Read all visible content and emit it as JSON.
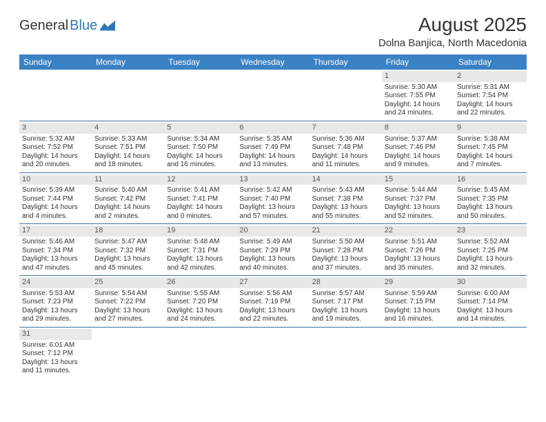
{
  "logo": {
    "textA": "General",
    "textB": "Blue"
  },
  "header": {
    "title": "August 2025",
    "subtitle": "Dolna Banjica, North Macedonia"
  },
  "colors": {
    "headerBg": "#3b82c4",
    "headerText": "#ffffff",
    "dayNumBg": "#e8e8e8",
    "dayNumText": "#555555",
    "rowBorder": "#3b6fa0",
    "bodyText": "#333333",
    "logoBlue": "#2f78b7"
  },
  "weekdays": [
    "Sunday",
    "Monday",
    "Tuesday",
    "Wednesday",
    "Thursday",
    "Friday",
    "Saturday"
  ],
  "weeks": [
    [
      null,
      null,
      null,
      null,
      null,
      {
        "n": "1",
        "sr": "5:30 AM",
        "ss": "7:55 PM",
        "dl": "14 hours and 24 minutes."
      },
      {
        "n": "2",
        "sr": "5:31 AM",
        "ss": "7:54 PM",
        "dl": "14 hours and 22 minutes."
      }
    ],
    [
      {
        "n": "3",
        "sr": "5:32 AM",
        "ss": "7:52 PM",
        "dl": "14 hours and 20 minutes."
      },
      {
        "n": "4",
        "sr": "5:33 AM",
        "ss": "7:51 PM",
        "dl": "14 hours and 18 minutes."
      },
      {
        "n": "5",
        "sr": "5:34 AM",
        "ss": "7:50 PM",
        "dl": "14 hours and 16 minutes."
      },
      {
        "n": "6",
        "sr": "5:35 AM",
        "ss": "7:49 PM",
        "dl": "14 hours and 13 minutes."
      },
      {
        "n": "7",
        "sr": "5:36 AM",
        "ss": "7:48 PM",
        "dl": "14 hours and 11 minutes."
      },
      {
        "n": "8",
        "sr": "5:37 AM",
        "ss": "7:46 PM",
        "dl": "14 hours and 9 minutes."
      },
      {
        "n": "9",
        "sr": "5:38 AM",
        "ss": "7:45 PM",
        "dl": "14 hours and 7 minutes."
      }
    ],
    [
      {
        "n": "10",
        "sr": "5:39 AM",
        "ss": "7:44 PM",
        "dl": "14 hours and 4 minutes."
      },
      {
        "n": "11",
        "sr": "5:40 AM",
        "ss": "7:42 PM",
        "dl": "14 hours and 2 minutes."
      },
      {
        "n": "12",
        "sr": "5:41 AM",
        "ss": "7:41 PM",
        "dl": "14 hours and 0 minutes."
      },
      {
        "n": "13",
        "sr": "5:42 AM",
        "ss": "7:40 PM",
        "dl": "13 hours and 57 minutes."
      },
      {
        "n": "14",
        "sr": "5:43 AM",
        "ss": "7:38 PM",
        "dl": "13 hours and 55 minutes."
      },
      {
        "n": "15",
        "sr": "5:44 AM",
        "ss": "7:37 PM",
        "dl": "13 hours and 52 minutes."
      },
      {
        "n": "16",
        "sr": "5:45 AM",
        "ss": "7:35 PM",
        "dl": "13 hours and 50 minutes."
      }
    ],
    [
      {
        "n": "17",
        "sr": "5:46 AM",
        "ss": "7:34 PM",
        "dl": "13 hours and 47 minutes."
      },
      {
        "n": "18",
        "sr": "5:47 AM",
        "ss": "7:32 PM",
        "dl": "13 hours and 45 minutes."
      },
      {
        "n": "19",
        "sr": "5:48 AM",
        "ss": "7:31 PM",
        "dl": "13 hours and 42 minutes."
      },
      {
        "n": "20",
        "sr": "5:49 AM",
        "ss": "7:29 PM",
        "dl": "13 hours and 40 minutes."
      },
      {
        "n": "21",
        "sr": "5:50 AM",
        "ss": "7:28 PM",
        "dl": "13 hours and 37 minutes."
      },
      {
        "n": "22",
        "sr": "5:51 AM",
        "ss": "7:26 PM",
        "dl": "13 hours and 35 minutes."
      },
      {
        "n": "23",
        "sr": "5:52 AM",
        "ss": "7:25 PM",
        "dl": "13 hours and 32 minutes."
      }
    ],
    [
      {
        "n": "24",
        "sr": "5:53 AM",
        "ss": "7:23 PM",
        "dl": "13 hours and 29 minutes."
      },
      {
        "n": "25",
        "sr": "5:54 AM",
        "ss": "7:22 PM",
        "dl": "13 hours and 27 minutes."
      },
      {
        "n": "26",
        "sr": "5:55 AM",
        "ss": "7:20 PM",
        "dl": "13 hours and 24 minutes."
      },
      {
        "n": "27",
        "sr": "5:56 AM",
        "ss": "7:19 PM",
        "dl": "13 hours and 22 minutes."
      },
      {
        "n": "28",
        "sr": "5:57 AM",
        "ss": "7:17 PM",
        "dl": "13 hours and 19 minutes."
      },
      {
        "n": "29",
        "sr": "5:59 AM",
        "ss": "7:15 PM",
        "dl": "13 hours and 16 minutes."
      },
      {
        "n": "30",
        "sr": "6:00 AM",
        "ss": "7:14 PM",
        "dl": "13 hours and 14 minutes."
      }
    ],
    [
      {
        "n": "31",
        "sr": "6:01 AM",
        "ss": "7:12 PM",
        "dl": "13 hours and 11 minutes."
      },
      null,
      null,
      null,
      null,
      null,
      null
    ]
  ],
  "labels": {
    "sunrise": "Sunrise:",
    "sunset": "Sunset:",
    "daylight": "Daylight:"
  }
}
